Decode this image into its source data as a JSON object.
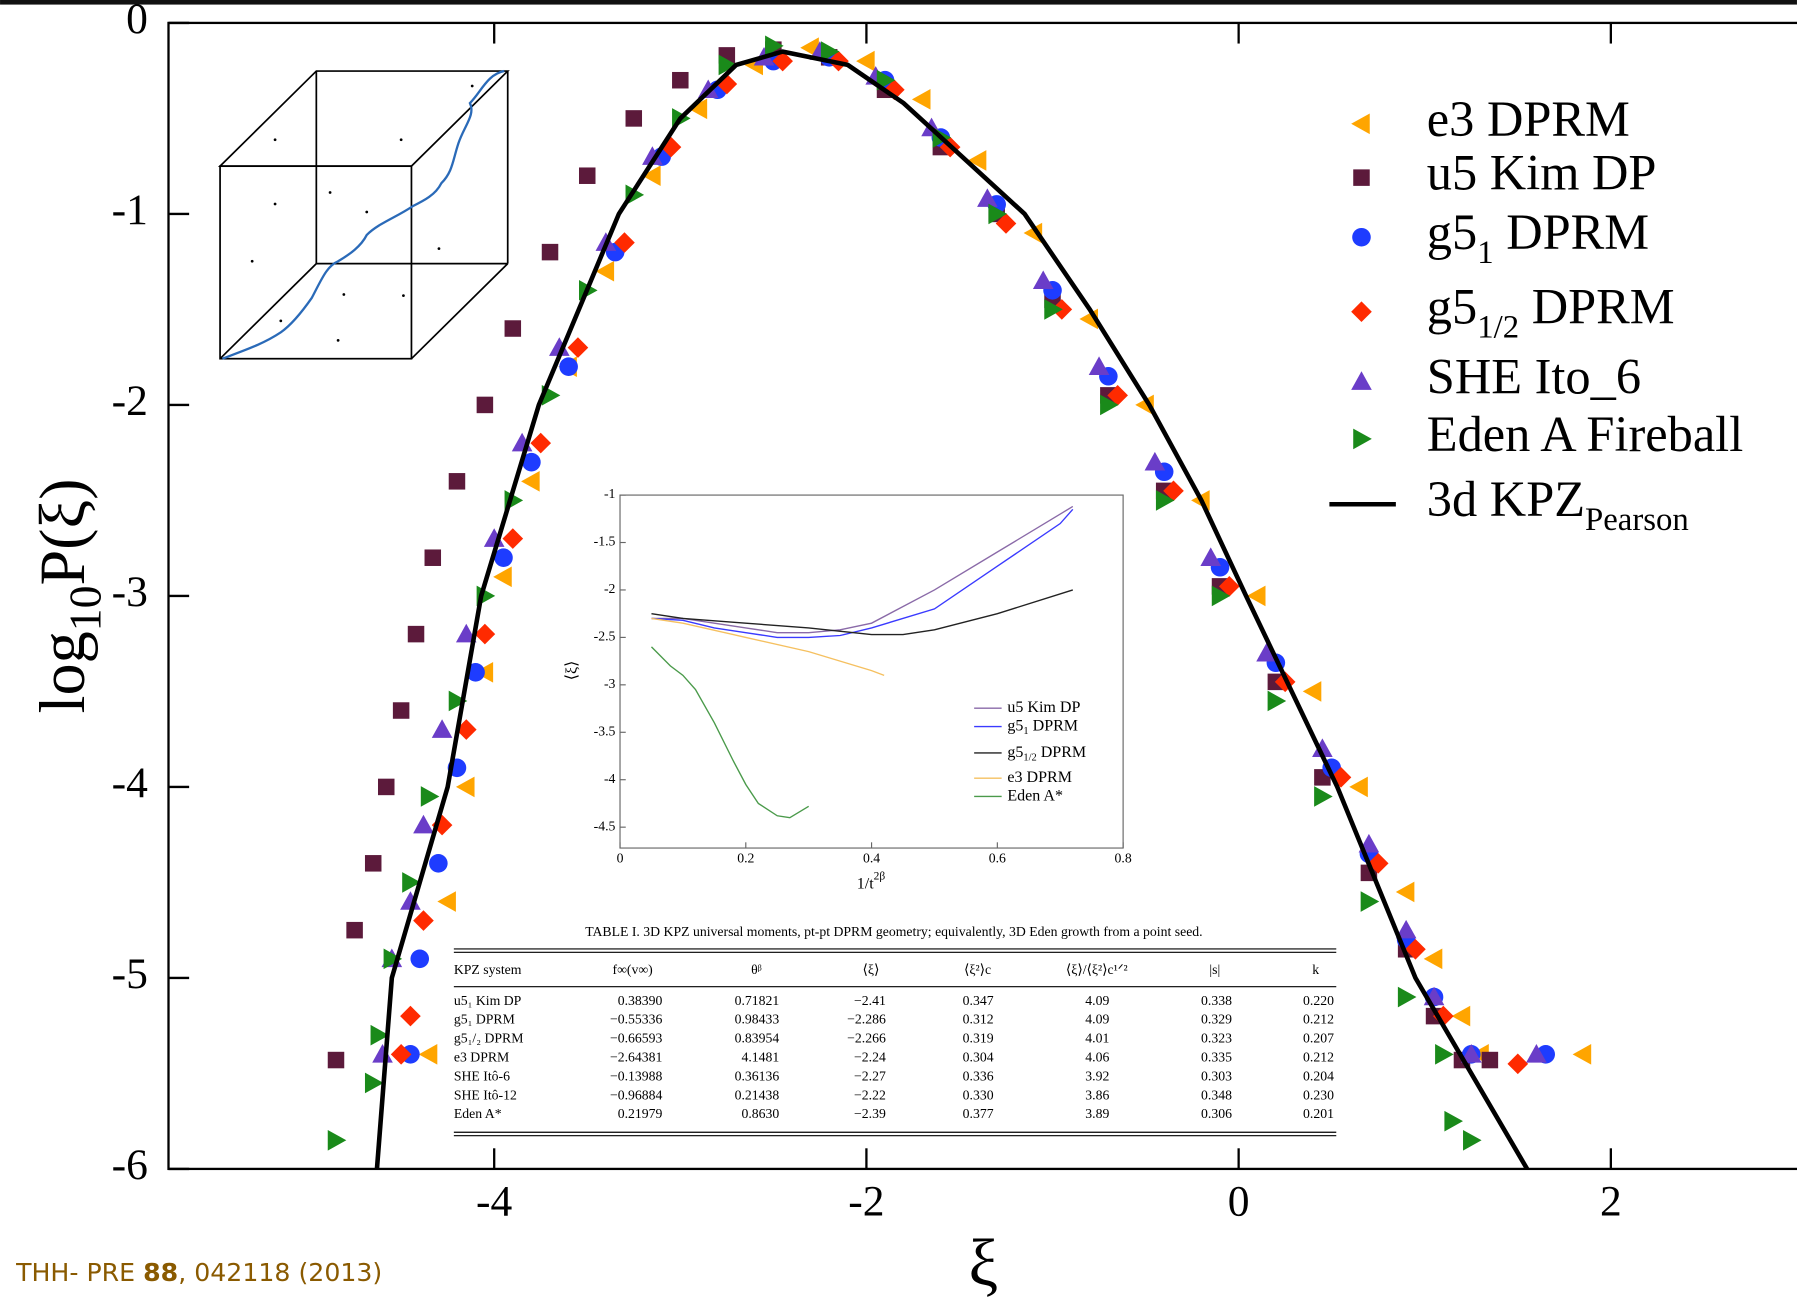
{
  "chart_data": [
    {
      "type": "scatter",
      "xlabel": "ξ",
      "ylabel": "log",
      "ylabel_sub": "10",
      "ylabel_end": "P(ξ)",
      "xlim": [
        -5.75,
        3
      ],
      "ylim": [
        -6,
        0
      ],
      "xticks": [
        -4,
        -2,
        0,
        2
      ],
      "yticks": [
        0,
        -1,
        -2,
        -3,
        -4,
        -5,
        -6
      ],
      "legend": "upper right",
      "series": [
        {
          "name": "e3 DPRM",
          "color": "#ffa500",
          "marker": "triangle-left",
          "x": [
            -4.35,
            -4.25,
            -4.15,
            -4.05,
            -3.95,
            -3.8,
            -3.6,
            -3.4,
            -3.15,
            -2.9,
            -2.6,
            -2.3,
            -2.0,
            -1.7,
            -1.4,
            -1.1,
            -0.8,
            -0.5,
            -0.2,
            0.1,
            0.4,
            0.65,
            0.9,
            1.05,
            1.2,
            1.3,
            1.85
          ],
          "values": [
            -5.4,
            -4.6,
            -4.0,
            -3.4,
            -2.9,
            -2.4,
            -1.8,
            -1.3,
            -0.8,
            -0.45,
            -0.22,
            -0.13,
            -0.2,
            -0.4,
            -0.72,
            -1.1,
            -1.55,
            -2.0,
            -2.5,
            -3.0,
            -3.5,
            -4.0,
            -4.55,
            -4.9,
            -5.2,
            -5.4,
            -5.4
          ]
        },
        {
          "name": "u5 Kim DP",
          "color": "#5c1a3b",
          "marker": "square",
          "x": [
            -4.85,
            -4.75,
            -4.65,
            -4.58,
            -4.5,
            -4.42,
            -4.33,
            -4.2,
            -4.05,
            -3.9,
            -3.7,
            -3.5,
            -3.25,
            -3.0,
            -2.75,
            -2.5,
            -2.2,
            -1.9,
            -1.6,
            -1.3,
            -1.0,
            -0.7,
            -0.4,
            -0.1,
            0.2,
            0.45,
            0.7,
            0.9,
            1.05,
            1.2,
            1.35
          ],
          "values": [
            -5.43,
            -4.75,
            -4.4,
            -4.0,
            -3.6,
            -3.2,
            -2.8,
            -2.4,
            -2.0,
            -1.6,
            -1.2,
            -0.8,
            -0.5,
            -0.3,
            -0.17,
            -0.14,
            -0.18,
            -0.35,
            -0.65,
            -1.0,
            -1.45,
            -1.95,
            -2.45,
            -2.95,
            -3.45,
            -3.95,
            -4.45,
            -4.85,
            -5.2,
            -5.43,
            -5.43
          ]
        },
        {
          "name": "g5",
          "name_sub": "1",
          "name_end": "DPRM",
          "color": "#1e3cff",
          "marker": "circle",
          "x": [
            -4.45,
            -4.4,
            -4.3,
            -4.2,
            -4.1,
            -3.95,
            -3.8,
            -3.6,
            -3.35,
            -3.1,
            -2.8,
            -2.5,
            -2.2,
            -1.9,
            -1.6,
            -1.3,
            -1.0,
            -0.7,
            -0.4,
            -0.1,
            0.2,
            0.5,
            0.7,
            0.9,
            1.05,
            1.25,
            1.65
          ],
          "values": [
            -5.4,
            -4.9,
            -4.4,
            -3.9,
            -3.4,
            -2.8,
            -2.3,
            -1.8,
            -1.2,
            -0.7,
            -0.35,
            -0.2,
            -0.18,
            -0.3,
            -0.6,
            -0.95,
            -1.4,
            -1.85,
            -2.35,
            -2.85,
            -3.35,
            -3.9,
            -4.35,
            -4.8,
            -5.1,
            -5.4,
            -5.4
          ]
        },
        {
          "name": "g5",
          "name_sub": "1/2",
          "name_end": "DPRM",
          "color": "#ff2a00",
          "marker": "diamond",
          "x": [
            -4.5,
            -4.45,
            -4.38,
            -4.28,
            -4.15,
            -4.05,
            -3.9,
            -3.75,
            -3.55,
            -3.3,
            -3.05,
            -2.75,
            -2.45,
            -2.15,
            -1.85,
            -1.55,
            -1.25,
            -0.95,
            -0.65,
            -0.35,
            -0.05,
            0.25,
            0.55,
            0.75,
            0.95,
            1.1,
            1.5
          ],
          "values": [
            -5.4,
            -5.2,
            -4.7,
            -4.2,
            -3.7,
            -3.2,
            -2.7,
            -2.2,
            -1.7,
            -1.15,
            -0.65,
            -0.32,
            -0.2,
            -0.2,
            -0.35,
            -0.65,
            -1.05,
            -1.5,
            -1.95,
            -2.45,
            -2.95,
            -3.45,
            -3.95,
            -4.4,
            -4.85,
            -5.2,
            -5.45
          ]
        },
        {
          "name": "SHE Ito_6",
          "color": "#6a3dc8",
          "marker": "triangle-up",
          "x": [
            -4.6,
            -4.55,
            -4.45,
            -4.38,
            -4.28,
            -4.15,
            -4.0,
            -3.85,
            -3.65,
            -3.4,
            -3.15,
            -2.85,
            -2.55,
            -2.25,
            -1.95,
            -1.65,
            -1.35,
            -1.05,
            -0.75,
            -0.45,
            -0.15,
            0.15,
            0.45,
            0.7,
            0.9,
            1.05,
            1.25,
            1.6
          ],
          "values": [
            -5.4,
            -4.9,
            -4.6,
            -4.2,
            -3.7,
            -3.2,
            -2.7,
            -2.2,
            -1.7,
            -1.15,
            -0.7,
            -0.35,
            -0.18,
            -0.15,
            -0.28,
            -0.55,
            -0.92,
            -1.35,
            -1.8,
            -2.3,
            -2.8,
            -3.3,
            -3.8,
            -4.3,
            -4.75,
            -5.1,
            -5.4,
            -5.4
          ]
        },
        {
          "name": "Eden A Fireball",
          "color": "#1a8a1a",
          "marker": "triangle-right",
          "x": [
            -4.85,
            -4.65,
            -4.62,
            -4.55,
            -4.45,
            -4.35,
            -4.2,
            -4.05,
            -3.9,
            -3.7,
            -3.5,
            -3.25,
            -3.0,
            -2.75,
            -2.5,
            -2.2,
            -1.9,
            -1.6,
            -1.3,
            -1.0,
            -0.7,
            -0.4,
            -0.1,
            0.2,
            0.45,
            0.7,
            0.9,
            1.1,
            1.15,
            1.25
          ],
          "values": [
            -5.85,
            -5.55,
            -5.3,
            -4.9,
            -4.5,
            -4.05,
            -3.55,
            -3.0,
            -2.5,
            -1.95,
            -1.4,
            -0.9,
            -0.5,
            -0.22,
            -0.12,
            -0.15,
            -0.3,
            -0.6,
            -1.0,
            -1.5,
            -2.0,
            -2.5,
            -3.0,
            -3.55,
            -4.05,
            -4.6,
            -5.1,
            -5.4,
            -5.75,
            -5.85
          ]
        },
        {
          "name": "3d KPZ",
          "name_sub": "Pearson",
          "color": "#000000",
          "marker": "line",
          "x": [
            -4.63,
            -4.55,
            -4.4,
            -4.25,
            -4.07,
            -3.76,
            -3.33,
            -3.0,
            -2.7,
            -2.45,
            -2.1,
            -1.8,
            -1.15,
            -0.8,
            -0.48,
            -0.2,
            0.04,
            0.53,
            0.95,
            1.55
          ],
          "values": [
            -6,
            -5,
            -4.5,
            -4,
            -3,
            -2,
            -1,
            -0.5,
            -0.22,
            -0.15,
            -0.22,
            -0.42,
            -1,
            -1.5,
            -2,
            -2.5,
            -3,
            -4,
            -5,
            -6
          ]
        }
      ]
    },
    {
      "type": "line",
      "xlabel": "1/t",
      "xlabel_sup": "2β",
      "ylabel": "⟨ξ⟩",
      "xlim": [
        0,
        0.8
      ],
      "ylim": [
        -4.72,
        -1
      ],
      "xticks": [
        0,
        0.2,
        0.4,
        0.6,
        0.8
      ],
      "yticks": [
        -1,
        -1.5,
        -2,
        -2.5,
        -3,
        -3.5,
        -4,
        -4.5
      ],
      "legend": "lower right",
      "series": [
        {
          "name": "u5 Kim DP",
          "color": "#8a6aa8",
          "x": [
            0.05,
            0.1,
            0.15,
            0.2,
            0.25,
            0.3,
            0.35,
            0.4,
            0.5,
            0.6,
            0.7,
            0.72
          ],
          "values": [
            -2.3,
            -2.3,
            -2.35,
            -2.4,
            -2.45,
            -2.45,
            -2.42,
            -2.35,
            -2.0,
            -1.6,
            -1.2,
            -1.12
          ]
        },
        {
          "name": "g5",
          "name_sub": "1",
          "name_end": "DPRM",
          "color": "#3a3aff",
          "x": [
            0.05,
            0.1,
            0.15,
            0.2,
            0.25,
            0.3,
            0.35,
            0.4,
            0.5,
            0.6,
            0.7,
            0.72
          ],
          "values": [
            -2.3,
            -2.32,
            -2.4,
            -2.45,
            -2.5,
            -2.5,
            -2.48,
            -2.4,
            -2.2,
            -1.75,
            -1.3,
            -1.15
          ]
        },
        {
          "name": "g5",
          "name_sub": "1/2",
          "name_end": "DPRM",
          "color": "#222222",
          "x": [
            0.05,
            0.1,
            0.2,
            0.3,
            0.4,
            0.45,
            0.5,
            0.6,
            0.72
          ],
          "values": [
            -2.25,
            -2.3,
            -2.35,
            -2.4,
            -2.47,
            -2.47,
            -2.42,
            -2.25,
            -2.0
          ]
        },
        {
          "name": "e3 DPRM",
          "color": "#f5c060",
          "x": [
            0.05,
            0.1,
            0.2,
            0.3,
            0.4,
            0.42
          ],
          "values": [
            -2.3,
            -2.35,
            -2.5,
            -2.65,
            -2.85,
            -2.9
          ]
        },
        {
          "name": "Eden A*",
          "color": "#4a9a4a",
          "x": [
            0.05,
            0.08,
            0.1,
            0.12,
            0.15,
            0.18,
            0.2,
            0.22,
            0.25,
            0.27,
            0.3
          ],
          "values": [
            -2.6,
            -2.8,
            -2.9,
            -3.05,
            -3.4,
            -3.8,
            -4.05,
            -4.25,
            -4.38,
            -4.4,
            -4.28
          ]
        }
      ]
    }
  ],
  "table": {
    "caption": "TABLE I. 3D KPZ universal moments, pt-pt DPRM geometry; equivalently, 3D Eden growth from a point seed.",
    "header": [
      "KPZ system",
      "f∞(v∞)",
      "θᵝ",
      "⟨ξ⟩",
      "⟨ξ²⟩c",
      "⟨ξ⟩/⟨ξ²⟩c¹ᐟ²",
      "|s|",
      "k"
    ],
    "rows": [
      [
        "u5₁ Kim DP",
        "0.38390",
        "0.71821",
        "−2.41",
        "0.347",
        "4.09",
        "0.338",
        "0.220"
      ],
      [
        "g5₁ DPRM",
        "−0.55336",
        "0.98433",
        "−2.286",
        "0.312",
        "4.09",
        "0.329",
        "0.212"
      ],
      [
        "g5₁/₂ DPRM",
        "−0.66593",
        "0.83954",
        "−2.266",
        "0.319",
        "4.01",
        "0.323",
        "0.207"
      ],
      [
        "e3 DPRM",
        "−2.64381",
        "4.1481",
        "−2.24",
        "0.304",
        "4.06",
        "0.335",
        "0.212"
      ],
      [
        "SHE Itô-6",
        "−0.13988",
        "0.36136",
        "−2.27",
        "0.336",
        "3.92",
        "0.303",
        "0.204"
      ],
      [
        "SHE Itô-12",
        "−0.96884",
        "0.21438",
        "−2.22",
        "0.330",
        "3.86",
        "0.348",
        "0.230"
      ],
      [
        "Eden A*",
        "0.21979",
        "0.8630",
        "−2.39",
        "0.377",
        "3.89",
        "0.306",
        "0.201"
      ]
    ]
  },
  "citation": {
    "text": "THH- PRE",
    "volume": "88",
    "rest": ", 042118 (2013)"
  }
}
